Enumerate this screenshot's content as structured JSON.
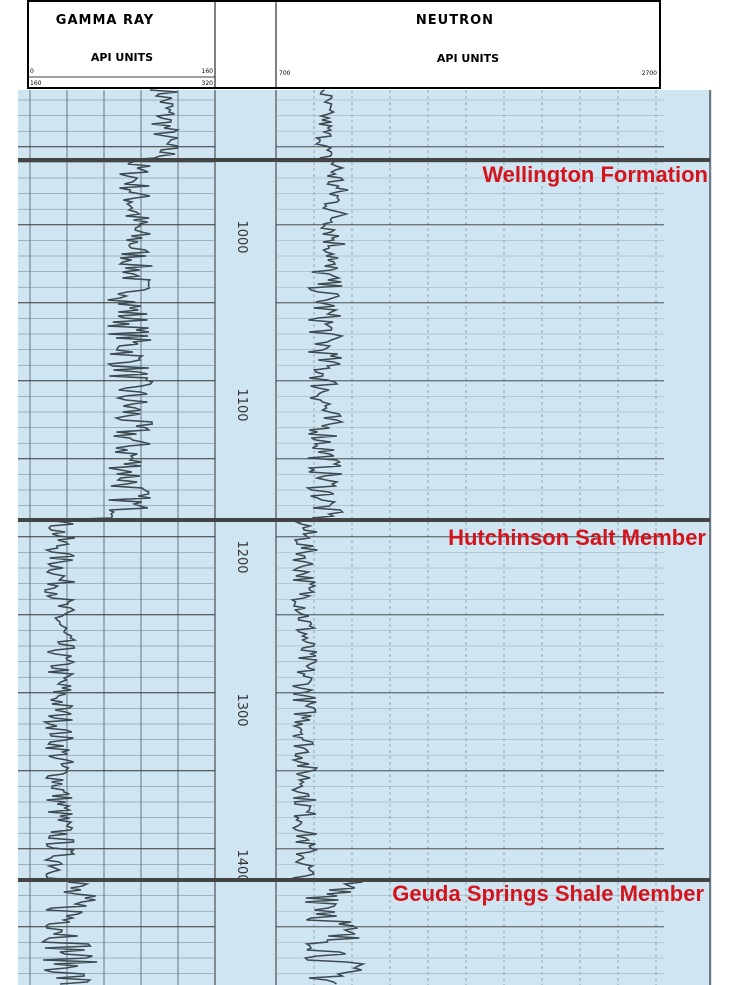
{
  "header": {
    "gamma_ray": {
      "title": "GAMMA RAY",
      "units": "API UNITS",
      "scale_top": [
        "0",
        "160"
      ],
      "scale_bottom": [
        "160",
        "320"
      ]
    },
    "neutron": {
      "title": "NEUTRON",
      "units": "API UNITS",
      "scale": [
        "700",
        "2700"
      ]
    }
  },
  "depths": [
    "1000",
    "1100",
    "1200",
    "1300",
    "1400"
  ],
  "formations": [
    "Wellington Formation",
    "Hutchinson Salt Member",
    "Geuda Springs Shale Member"
  ]
}
